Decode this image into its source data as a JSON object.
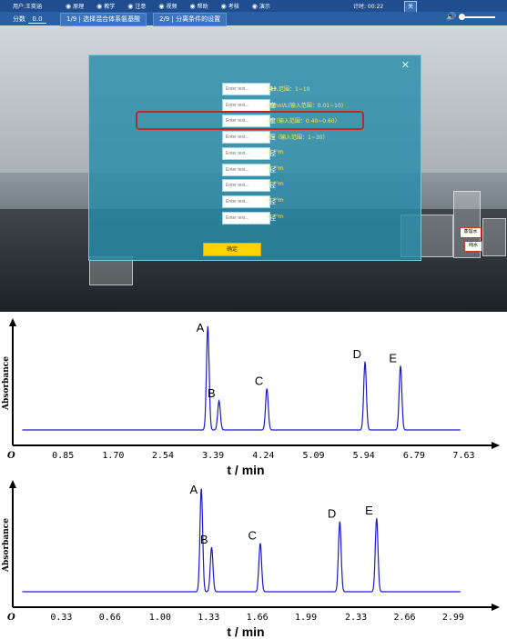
{
  "topbar": {
    "user": "用户:王奕涵",
    "menu": [
      {
        "icon": "globe-icon",
        "label": "原理"
      },
      {
        "icon": "person-icon",
        "label": "教学"
      },
      {
        "icon": "triangle-icon",
        "label": "注意"
      },
      {
        "icon": "picture-icon",
        "label": "视频"
      },
      {
        "icon": "question-icon",
        "label": "帮助"
      },
      {
        "icon": "clipboard-icon",
        "label": "考核"
      },
      {
        "icon": "monitor-icon",
        "label": "演示"
      }
    ],
    "timer": "计时: 00:22",
    "close_label": "关"
  },
  "subbar": {
    "score_label": "分数",
    "score_value": "0.0",
    "tab1_step": "1/9",
    "tab1_label": "选择混合体系氨基酸",
    "tab2_step": "2/9",
    "tab2_label": "分离条件的设置"
  },
  "dialog": {
    "close": "✕",
    "confirm_label": "确定",
    "rows": [
      {
        "label": "缓冲溶液pH",
        "placeholder": "Enter text...",
        "hint": "输入范围：1~10"
      },
      {
        "label": "缓冲溶液浓度",
        "placeholder": "Enter text...",
        "hint": "mmol/L(输入范围：0.01~10)"
      },
      {
        "label": "毛细管长度",
        "placeholder": "Enter text...",
        "hint": "m（输入范围：0.40~0.60）"
      },
      {
        "label": "分离电压",
        "placeholder": "Enter text...",
        "hint": "KV（输入范围：1~30）"
      },
      {
        "label": "丙氨酸离子半径",
        "placeholder": "Enter text...",
        "hint": "E⁻¹⁰m"
      },
      {
        "label": "甘氨酸离子半径",
        "placeholder": "Enter text...",
        "hint": "E⁻¹⁰m"
      },
      {
        "label": "谷氨酸离子半径",
        "placeholder": "Enter text...",
        "hint": "E⁻¹⁰m"
      },
      {
        "label": "天冬氨酸离子半径",
        "placeholder": "Enter text...",
        "hint": "E⁻¹⁰m"
      },
      {
        "label": "丝氨酸离子半径",
        "placeholder": "Enter text...",
        "hint": "E⁻¹⁰m"
      }
    ]
  },
  "lab_labels": {
    "label1": "蒸馏水",
    "label2": "纯水"
  },
  "chart_data": [
    {
      "type": "line",
      "xlabel": "t / min",
      "ylabel": "Absorbance",
      "origin_label": "O",
      "xticks": [
        "0.85",
        "1.70",
        "2.54",
        "3.39",
        "4.24",
        "5.09",
        "5.94",
        "6.79",
        "7.63"
      ],
      "xlim": [
        0,
        8.1
      ],
      "peaks": [
        {
          "name": "A",
          "x": 3.3,
          "height": 1.0
        },
        {
          "name": "B",
          "x": 3.49,
          "height": 0.28
        },
        {
          "name": "C",
          "x": 4.3,
          "height": 0.4
        },
        {
          "name": "D",
          "x": 5.96,
          "height": 0.66
        },
        {
          "name": "E",
          "x": 6.56,
          "height": 0.62
        }
      ],
      "color": "#1a1acc"
    },
    {
      "type": "line",
      "xlabel": "t / min",
      "ylabel": "Absorbance",
      "origin_label": "O",
      "xticks": [
        "0.33",
        "0.66",
        "1.00",
        "1.33",
        "1.66",
        "1.99",
        "2.33",
        "2.66",
        "2.99"
      ],
      "xlim": [
        0,
        3.25
      ],
      "peaks": [
        {
          "name": "A",
          "x": 1.28,
          "height": 1.0
        },
        {
          "name": "B",
          "x": 1.35,
          "height": 0.43
        },
        {
          "name": "C",
          "x": 1.68,
          "height": 0.47
        },
        {
          "name": "D",
          "x": 2.22,
          "height": 0.68
        },
        {
          "name": "E",
          "x": 2.47,
          "height": 0.71
        }
      ],
      "color": "#1a1acc"
    }
  ]
}
